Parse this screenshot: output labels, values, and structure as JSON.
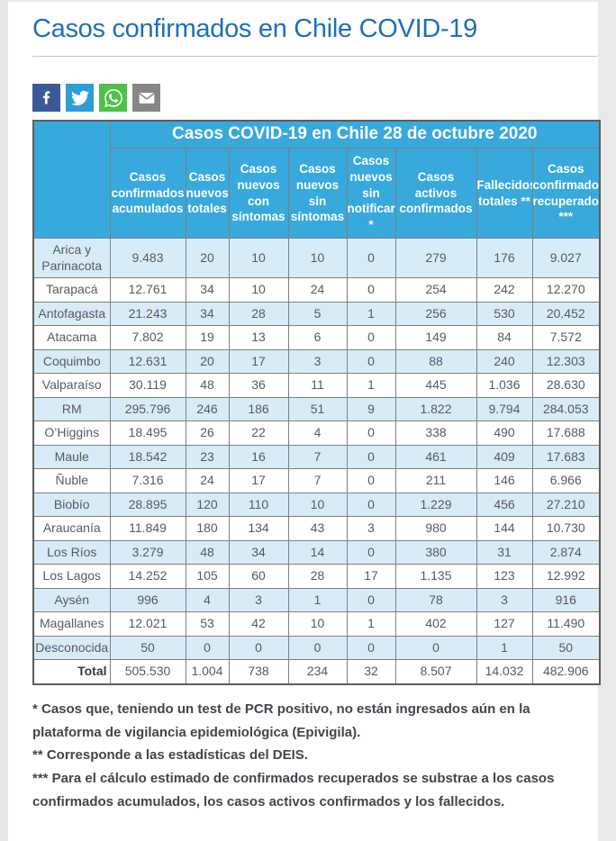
{
  "page": {
    "title": "Casos confirmados en Chile COVID-19"
  },
  "share": {
    "buttons": [
      {
        "label": "facebook",
        "icon": "facebook-icon",
        "color": "#3b5998"
      },
      {
        "label": "twitter",
        "icon": "twitter-icon",
        "color": "#2b9ed9"
      },
      {
        "label": "whatsapp",
        "icon": "whatsapp-icon",
        "color": "#4dc247"
      },
      {
        "label": "email",
        "icon": "email-icon",
        "color": "#868686"
      }
    ]
  },
  "colors": {
    "title_blue": "#1e6fba",
    "table_header_blue": "#38a9dd",
    "row_alt_blue": "#d7ecf7",
    "cell_text": "#595a5c"
  },
  "table": {
    "title": "Casos COVID-19 en Chile 28 de octubre 2020",
    "columns": [
      "Casos confirmados acumulados",
      "Casos nuevos totales",
      "Casos nuevos con síntomas",
      "Casos nuevos sin síntomas",
      "Casos nuevos sin notificar *",
      "Casos activos confirmados",
      "Fallecidos totales **",
      "Casos confirmados recuperados ***"
    ],
    "rows": [
      {
        "region": "Arica y Parinacota",
        "values": [
          "9.483",
          "20",
          "10",
          "10",
          "0",
          "279",
          "176",
          "9.027"
        ]
      },
      {
        "region": "Tarapacá",
        "values": [
          "12.761",
          "34",
          "10",
          "24",
          "0",
          "254",
          "242",
          "12.270"
        ]
      },
      {
        "region": "Antofagasta",
        "values": [
          "21.243",
          "34",
          "28",
          "5",
          "1",
          "256",
          "530",
          "20.452"
        ]
      },
      {
        "region": "Atacama",
        "values": [
          "7.802",
          "19",
          "13",
          "6",
          "0",
          "149",
          "84",
          "7.572"
        ]
      },
      {
        "region": "Coquimbo",
        "values": [
          "12.631",
          "20",
          "17",
          "3",
          "0",
          "88",
          "240",
          "12.303"
        ]
      },
      {
        "region": "Valparaíso",
        "values": [
          "30.119",
          "48",
          "36",
          "11",
          "1",
          "445",
          "1.036",
          "28.630"
        ]
      },
      {
        "region": "RM",
        "values": [
          "295.796",
          "246",
          "186",
          "51",
          "9",
          "1.822",
          "9.794",
          "284.053"
        ]
      },
      {
        "region": "O’Higgins",
        "values": [
          "18.495",
          "26",
          "22",
          "4",
          "0",
          "338",
          "490",
          "17.688"
        ]
      },
      {
        "region": "Maule",
        "values": [
          "18.542",
          "23",
          "16",
          "7",
          "0",
          "461",
          "409",
          "17.683"
        ]
      },
      {
        "region": "Ñuble",
        "values": [
          "7.316",
          "24",
          "17",
          "7",
          "0",
          "211",
          "146",
          "6.966"
        ]
      },
      {
        "region": "Biobío",
        "values": [
          "28.895",
          "120",
          "110",
          "10",
          "0",
          "1.229",
          "456",
          "27.210"
        ]
      },
      {
        "region": "Araucanía",
        "values": [
          "11.849",
          "180",
          "134",
          "43",
          "3",
          "980",
          "144",
          "10.730"
        ]
      },
      {
        "region": "Los Ríos",
        "values": [
          "3.279",
          "48",
          "34",
          "14",
          "0",
          "380",
          "31",
          "2.874"
        ]
      },
      {
        "region": "Los Lagos",
        "values": [
          "14.252",
          "105",
          "60",
          "28",
          "17",
          "1.135",
          "123",
          "12.992"
        ]
      },
      {
        "region": "Aysén",
        "values": [
          "996",
          "4",
          "3",
          "1",
          "0",
          "78",
          "3",
          "916"
        ]
      },
      {
        "region": "Magallanes",
        "values": [
          "12.021",
          "53",
          "42",
          "10",
          "1",
          "402",
          "127",
          "11.490"
        ]
      },
      {
        "region": "Desconocida",
        "values": [
          "50",
          "0",
          "0",
          "0",
          "0",
          "0",
          "1",
          "50"
        ]
      }
    ],
    "total": {
      "label": "Total",
      "values": [
        "505.530",
        "1.004",
        "738",
        "234",
        "32",
        "8.507",
        "14.032",
        "482.906"
      ]
    }
  },
  "footnotes": [
    "* Casos que, teniendo un test de PCR positivo, no están ingresados aún en la plataforma de vigilancia epidemiológica (Epivigila).",
    "** Corresponde a las estadísticas del DEIS.",
    "*** Para el cálculo estimado de confirmados recuperados se substrae a los casos confirmados acumulados, los casos activos confirmados y los fallecidos."
  ]
}
